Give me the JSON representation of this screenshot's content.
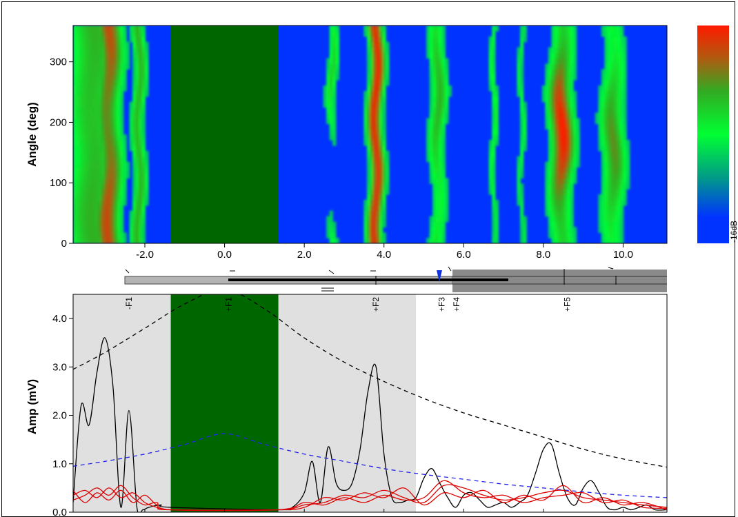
{
  "chart_data": [
    {
      "type": "heatmap",
      "ylabel": "Angle (deg)",
      "xlim": [
        -3.8,
        11.1
      ],
      "ylim": [
        0,
        360
      ],
      "x_ticks": [
        "-2.0",
        "0.0",
        "2.0",
        "4.0",
        "6.0",
        "8.0",
        "10.0"
      ],
      "x_tick_values": [
        -2.0,
        0.0,
        2.0,
        4.0,
        6.0,
        8.0,
        10.0
      ],
      "y_ticks": [
        "0",
        "100",
        "200",
        "300"
      ],
      "y_tick_values": [
        0,
        100,
        200,
        300
      ],
      "masked_region": [
        -1.35,
        1.35
      ],
      "colorbar": {
        "min_label": "-16dB",
        "colors": [
          "#0033ff",
          "#00ff33",
          "#b05a10",
          "#ff1a00"
        ]
      },
      "bands": [
        {
          "x": -3.3,
          "width": 0.45,
          "peak": 0.55,
          "a1": 0.1
        },
        {
          "x": -2.9,
          "width": 0.22,
          "peak": 0.85,
          "a1": 0.22
        },
        {
          "x": -2.15,
          "width": 0.11,
          "peak": 0.55,
          "a1": 0.05
        },
        {
          "x": 2.7,
          "width": 0.09,
          "peak": 0.45,
          "a1": 0.9
        },
        {
          "x": 3.8,
          "width": 0.13,
          "peak": 0.95,
          "a1": 0.05
        },
        {
          "x": 5.35,
          "width": 0.14,
          "peak": 0.55,
          "a1": 0.4
        },
        {
          "x": 6.75,
          "width": 0.06,
          "peak": 0.35,
          "a1": 0.3
        },
        {
          "x": 7.45,
          "width": 0.05,
          "peak": 0.3,
          "a1": 0.2
        },
        {
          "x": 8.45,
          "width": 0.2,
          "peak": 1.0,
          "a1": 0.55
        },
        {
          "x": 9.75,
          "width": 0.2,
          "peak": 0.65,
          "a1": 0.5
        }
      ]
    },
    {
      "type": "line",
      "ylabel": "Amp (mV)",
      "xlim": [
        -3.8,
        11.1
      ],
      "ylim": [
        0,
        4.5
      ],
      "y_ticks": [
        "0.0",
        "1.0",
        "2.0",
        "3.0",
        "4.0"
      ],
      "y_tick_values": [
        0,
        1.0,
        2.0,
        3.0,
        4.0
      ],
      "shaded_regions": [
        [
          -3.8,
          -1.35
        ],
        [
          1.35,
          4.8
        ]
      ],
      "masked_region": [
        -1.35,
        1.35
      ],
      "feature_labels": [
        {
          "label": "-F1",
          "x": -2.4
        },
        {
          "label": "+F1",
          "x": 0.1
        },
        {
          "label": "+F2",
          "x": 3.8
        },
        {
          "label": "+F3",
          "x": 5.45
        },
        {
          "label": "+F4",
          "x": 5.82
        },
        {
          "label": "+F5",
          "x": 8.6
        }
      ],
      "series": [
        {
          "color": "#000000",
          "dash": "none",
          "x": [
            -3.8,
            -3.6,
            -3.4,
            -3.2,
            -3.0,
            -2.8,
            -2.6,
            -2.4,
            -2.2,
            -2.05,
            -1.9,
            -1.6,
            -1.35,
            1.35,
            1.7,
            2.0,
            2.2,
            2.4,
            2.6,
            2.8,
            3.0,
            3.2,
            3.4,
            3.6,
            3.8,
            4.0,
            4.2,
            4.4,
            4.6,
            4.8,
            5.0,
            5.2,
            5.4,
            5.6,
            5.8,
            6.0,
            6.2,
            6.4,
            6.6,
            6.8,
            7.0,
            7.2,
            7.4,
            7.6,
            7.8,
            8.0,
            8.2,
            8.4,
            8.6,
            8.8,
            9.0,
            9.2,
            9.4,
            9.6,
            9.8,
            10.0,
            10.2,
            10.4,
            10.6,
            10.8,
            11.1
          ],
          "y": [
            0.2,
            2.2,
            1.8,
            2.9,
            3.6,
            2.6,
            0.1,
            2.1,
            0.1,
            0.05,
            0.1,
            0.15,
            0.1,
            0.05,
            0.1,
            0.4,
            1.05,
            0.2,
            1.35,
            0.6,
            0.45,
            0.6,
            1.3,
            2.5,
            3.0,
            1.2,
            0.3,
            0.2,
            0.25,
            0.3,
            0.7,
            0.9,
            0.6,
            0.3,
            0.1,
            0.35,
            0.4,
            0.25,
            0.1,
            0.15,
            0.2,
            0.1,
            0.2,
            0.35,
            0.8,
            1.3,
            1.4,
            0.8,
            0.3,
            0.15,
            0.5,
            0.65,
            0.4,
            0.1,
            0.05,
            0.1,
            0.05,
            0.1,
            0.15,
            0.05,
            0.05
          ]
        },
        {
          "color": "#000000",
          "dash": "6,5",
          "x": [
            -3.8,
            -3.0,
            -2.0,
            -1.0,
            0.0,
            1.0,
            2.0,
            3.0,
            4.0,
            5.0,
            6.0,
            7.0,
            8.0,
            9.0,
            10.0,
            11.1
          ],
          "y": [
            2.95,
            3.3,
            3.8,
            4.3,
            4.6,
            4.2,
            3.6,
            3.1,
            2.7,
            2.35,
            2.05,
            1.8,
            1.55,
            1.3,
            1.1,
            0.93
          ]
        },
        {
          "color": "#2222ee",
          "dash": "6,5",
          "x": [
            -3.8,
            -3.0,
            -2.0,
            -1.0,
            0.0,
            1.0,
            2.0,
            3.0,
            4.0,
            5.0,
            6.0,
            7.0,
            8.0,
            9.0,
            10.0,
            11.1
          ],
          "y": [
            0.95,
            1.05,
            1.2,
            1.4,
            1.62,
            1.4,
            1.2,
            1.05,
            0.9,
            0.78,
            0.68,
            0.58,
            0.5,
            0.42,
            0.35,
            0.3
          ]
        },
        {
          "color": "#dd0000",
          "dash": "none",
          "x": [
            -3.8,
            -3.5,
            -3.2,
            -2.9,
            -2.6,
            -2.3,
            -2.0,
            -1.7,
            -1.35,
            1.35,
            2.0,
            2.5,
            3.0,
            3.5,
            4.0,
            4.5,
            5.0,
            5.5,
            6.0,
            6.5,
            7.0,
            7.5,
            8.0,
            8.5,
            9.0,
            9.5,
            10.0,
            10.5,
            11.1
          ],
          "y": [
            0.35,
            0.45,
            0.3,
            0.5,
            0.3,
            0.4,
            0.2,
            0.1,
            0.05,
            0.05,
            0.15,
            0.2,
            0.35,
            0.3,
            0.45,
            0.3,
            0.2,
            0.55,
            0.5,
            0.35,
            0.25,
            0.3,
            0.4,
            0.45,
            0.3,
            0.25,
            0.2,
            0.15,
            0.1
          ]
        },
        {
          "color": "#dd0000",
          "dash": "none",
          "x": [
            -3.8,
            -3.5,
            -3.2,
            -2.9,
            -2.6,
            -2.3,
            -2.0,
            -1.7,
            -1.35,
            1.35,
            2.0,
            2.5,
            3.0,
            3.5,
            4.0,
            4.5,
            5.0,
            5.5,
            6.0,
            6.5,
            7.0,
            7.5,
            8.0,
            8.5,
            9.0,
            9.5,
            10.0,
            10.5,
            11.1
          ],
          "y": [
            0.45,
            0.2,
            0.4,
            0.25,
            0.45,
            0.2,
            0.35,
            0.15,
            0.05,
            0.05,
            0.1,
            0.3,
            0.25,
            0.4,
            0.3,
            0.5,
            0.15,
            0.4,
            0.3,
            0.45,
            0.2,
            0.35,
            0.25,
            0.55,
            0.2,
            0.3,
            0.15,
            0.2,
            0.05
          ]
        },
        {
          "color": "#dd0000",
          "dash": "none",
          "x": [
            -3.8,
            -3.5,
            -3.2,
            -2.9,
            -2.6,
            -2.3,
            -2.0,
            -1.7,
            -1.35,
            1.35,
            2.0,
            2.5,
            3.0,
            3.5,
            4.0,
            4.5,
            5.0,
            5.5,
            6.0,
            6.5,
            7.0,
            7.5,
            8.0,
            8.5,
            9.0,
            9.5,
            10.0,
            10.5,
            11.1
          ],
          "y": [
            0.25,
            0.35,
            0.5,
            0.35,
            0.55,
            0.3,
            0.15,
            0.2,
            0.05,
            0.05,
            0.2,
            0.15,
            0.3,
            0.2,
            0.35,
            0.25,
            0.3,
            0.65,
            0.4,
            0.3,
            0.35,
            0.2,
            0.3,
            0.35,
            0.4,
            0.2,
            0.25,
            0.1,
            0.08
          ]
        }
      ]
    }
  ]
}
